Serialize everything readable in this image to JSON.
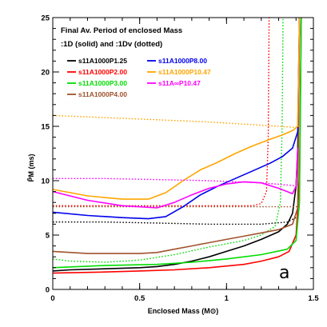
{
  "chart_data": {
    "type": "line",
    "title": "Final Av. Period of enclosed Mass",
    "subtitle": ":1D (solid) and :1Dv (dotted)",
    "xlabel": "Enclosed Mass (M⊙)",
    "ylabel": "P̄M (ms)",
    "panel_label": "a",
    "xlim": [
      0,
      1.5
    ],
    "ylim": [
      0,
      25
    ],
    "xticks": [
      "0",
      "0.5",
      "1",
      "1.5"
    ],
    "yticks": [
      "0",
      "5",
      "10",
      "15",
      "20",
      "25"
    ],
    "grid": false,
    "legend_position": "top-left",
    "legend": [
      {
        "label": "s11A1000P1.25",
        "color": "#000000"
      },
      {
        "label": "s11A1000P2.00",
        "color": "#ff0000"
      },
      {
        "label": "s11A1000P3.00",
        "color": "#00dd00"
      },
      {
        "label": "s11A1000P4.00",
        "color": "#a0522d"
      },
      {
        "label": "s11A1000P8.00",
        "color": "#0000ee"
      },
      {
        "label": "s11A1000P10.47",
        "color": "#ffa500"
      },
      {
        "label": "s11A∞P10.47",
        "color": "#ff00ff"
      }
    ],
    "series": [
      {
        "name": "s11A1000P1.25",
        "style": "solid",
        "color": "#000000",
        "x": [
          0,
          0.1,
          0.3,
          0.5,
          0.6,
          0.7,
          0.8,
          0.9,
          1.0,
          1.1,
          1.2,
          1.3,
          1.35,
          1.38,
          1.4,
          1.41,
          1.42
        ],
        "y": [
          1.7,
          1.8,
          1.9,
          2.0,
          2.1,
          2.3,
          2.6,
          3.0,
          3.5,
          4.0,
          4.6,
          5.3,
          6.0,
          7.0,
          9.5,
          13.0,
          25
        ]
      },
      {
        "name": "s11A1000P1.25",
        "style": "dotted",
        "color": "#000000",
        "x": [
          0,
          0.3,
          0.6,
          0.9,
          1.2,
          1.35,
          1.41
        ],
        "y": [
          6.2,
          6.2,
          6.1,
          6.0,
          6.0,
          6.2,
          6.7
        ]
      },
      {
        "name": "s11A1000P2.00",
        "style": "solid",
        "color": "#ff0000",
        "x": [
          0,
          0.3,
          0.5,
          0.7,
          0.9,
          1.1,
          1.2,
          1.3,
          1.36,
          1.4,
          1.42,
          1.43
        ],
        "y": [
          1.5,
          1.6,
          1.7,
          1.8,
          2.0,
          2.3,
          2.6,
          3.0,
          3.5,
          5.0,
          10.0,
          25
        ]
      },
      {
        "name": "s11A1000P2.00",
        "style": "dotted",
        "color": "#ff0000",
        "x": [
          0,
          0.5,
          1.0,
          1.15,
          1.2,
          1.23,
          1.24,
          1.245
        ],
        "y": [
          7.7,
          7.7,
          7.7,
          7.7,
          7.9,
          9.0,
          14.0,
          25
        ]
      },
      {
        "name": "s11A1000P3.00",
        "style": "solid",
        "color": "#00dd00",
        "x": [
          0,
          0.3,
          0.6,
          0.8,
          1.0,
          1.2,
          1.35,
          1.4,
          1.42,
          1.43
        ],
        "y": [
          2.0,
          2.2,
          2.3,
          2.5,
          2.8,
          3.2,
          3.7,
          4.5,
          8.0,
          25
        ]
      },
      {
        "name": "s11A1000P3.00",
        "style": "dotted",
        "color": "#00dd00",
        "x": [
          0,
          0.1,
          0.3,
          0.5,
          0.7,
          0.9,
          1.1,
          1.2,
          1.28,
          1.31,
          1.32,
          1.325
        ],
        "y": [
          2.8,
          2.6,
          2.5,
          2.7,
          3.2,
          3.9,
          4.5,
          5.0,
          5.8,
          8.0,
          15.0,
          25
        ]
      },
      {
        "name": "s11A1000P4.00",
        "style": "solid",
        "color": "#a0522d",
        "x": [
          0,
          0.2,
          0.5,
          0.6,
          0.7,
          0.8,
          0.9,
          1.0,
          1.1,
          1.2,
          1.3,
          1.38,
          1.41,
          1.42
        ],
        "y": [
          3.5,
          3.3,
          3.3,
          3.4,
          3.7,
          4.0,
          4.3,
          4.6,
          4.9,
          5.2,
          5.5,
          6.0,
          7.5,
          25
        ]
      },
      {
        "name": "s11A1000P4.00",
        "style": "dotted",
        "color": "#a0522d",
        "x": [
          0,
          0.5,
          1.0,
          1.2,
          1.38,
          1.42
        ],
        "y": [
          7.6,
          7.6,
          7.6,
          7.6,
          7.6,
          7.6
        ]
      },
      {
        "name": "s11A1000P8.00",
        "style": "solid",
        "color": "#0000ee",
        "x": [
          0,
          0.2,
          0.4,
          0.55,
          0.65,
          0.75,
          0.85,
          0.95,
          1.05,
          1.15,
          1.25,
          1.32,
          1.38,
          1.41,
          1.42
        ],
        "y": [
          7.1,
          6.8,
          6.6,
          6.5,
          6.7,
          7.6,
          8.7,
          9.5,
          10.2,
          10.9,
          11.6,
          12.2,
          13.0,
          14.5,
          25
        ]
      },
      {
        "name": "s11A1000P10.47",
        "style": "solid",
        "color": "#ffa500",
        "x": [
          0,
          0.2,
          0.4,
          0.55,
          0.65,
          0.75,
          0.85,
          0.95,
          1.05,
          1.15,
          1.25,
          1.32,
          1.38,
          1.41,
          1.42
        ],
        "y": [
          9.2,
          8.6,
          8.3,
          8.3,
          8.9,
          10.0,
          11.0,
          11.7,
          12.5,
          13.2,
          13.8,
          14.2,
          14.6,
          15.0,
          25
        ]
      },
      {
        "name": "s11A1000P10.47",
        "style": "dotted",
        "color": "#ffa500",
        "x": [
          0,
          0.3,
          0.6,
          0.9,
          1.2,
          1.4,
          1.42
        ],
        "y": [
          16.0,
          15.8,
          15.6,
          15.4,
          15.1,
          14.9,
          15.0
        ]
      },
      {
        "name": "s11A∞P10.47",
        "style": "solid",
        "color": "#ff00ff",
        "x": [
          0,
          0.2,
          0.4,
          0.6,
          0.7,
          0.8,
          0.9,
          1.0,
          1.1,
          1.2,
          1.3,
          1.38,
          1.4,
          1.41
        ],
        "y": [
          9.0,
          8.2,
          7.7,
          7.5,
          8.0,
          8.7,
          9.3,
          9.7,
          9.9,
          9.8,
          9.3,
          8.8,
          9.5,
          13.0
        ]
      },
      {
        "name": "s11A∞P10.47",
        "style": "dotted",
        "color": "#ff00ff",
        "x": [
          0,
          0.3,
          0.6,
          0.9,
          1.2,
          1.35,
          1.41
        ],
        "y": [
          10.2,
          10.2,
          10.1,
          10.0,
          9.8,
          9.6,
          9.5
        ]
      }
    ]
  }
}
